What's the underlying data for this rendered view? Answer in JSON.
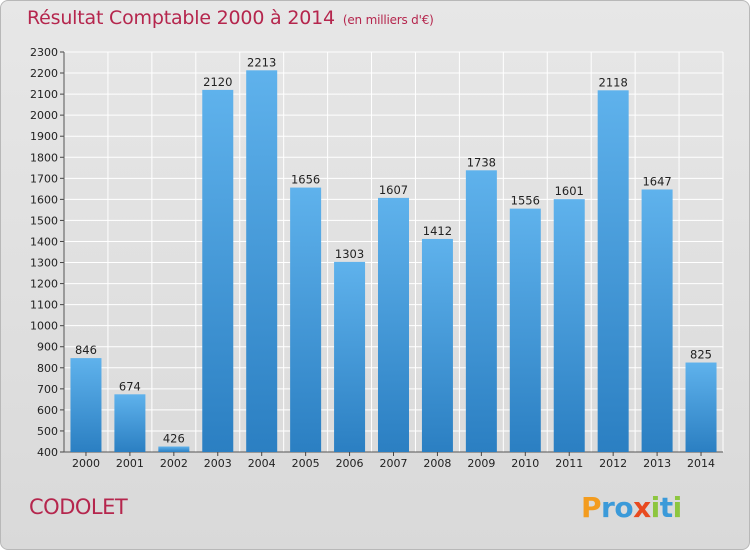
{
  "title": "Résultat Comptable 2000 à 2014",
  "subtitle": "(en milliers d'€)",
  "place": "CODOLET",
  "logo": {
    "text": "Proxiti",
    "letters": [
      {
        "ch": "P",
        "color": "#f39c1f"
      },
      {
        "ch": "r",
        "color": "#3b9ad9"
      },
      {
        "ch": "o",
        "color": "#3b9ad9"
      },
      {
        "ch": "x",
        "color": "#e84a1f"
      },
      {
        "ch": "i",
        "color": "#8dc63f"
      },
      {
        "ch": "t",
        "color": "#3b9ad9"
      },
      {
        "ch": "i",
        "color": "#8dc63f"
      }
    ]
  },
  "colors": {
    "title": "#b5264d",
    "bar_light": "#5fb2ec",
    "bar_dark": "#2b7fc2",
    "grid": "#ffffff",
    "background": "#dedede"
  },
  "chart_data": {
    "type": "bar",
    "title": "Résultat Comptable 2000 à 2014",
    "subtitle": "(en milliers d'€)",
    "xlabel": "",
    "ylabel": "",
    "categories": [
      "2000",
      "2001",
      "2002",
      "2003",
      "2004",
      "2005",
      "2006",
      "2007",
      "2008",
      "2009",
      "2010",
      "2011",
      "2012",
      "2013",
      "2014"
    ],
    "values": [
      846,
      674,
      426,
      2120,
      2213,
      1656,
      1303,
      1607,
      1412,
      1738,
      1556,
      1601,
      2118,
      1647,
      825
    ],
    "ylim": [
      400,
      2300
    ],
    "ytick_step": 100,
    "grid": true,
    "legend": "none"
  }
}
